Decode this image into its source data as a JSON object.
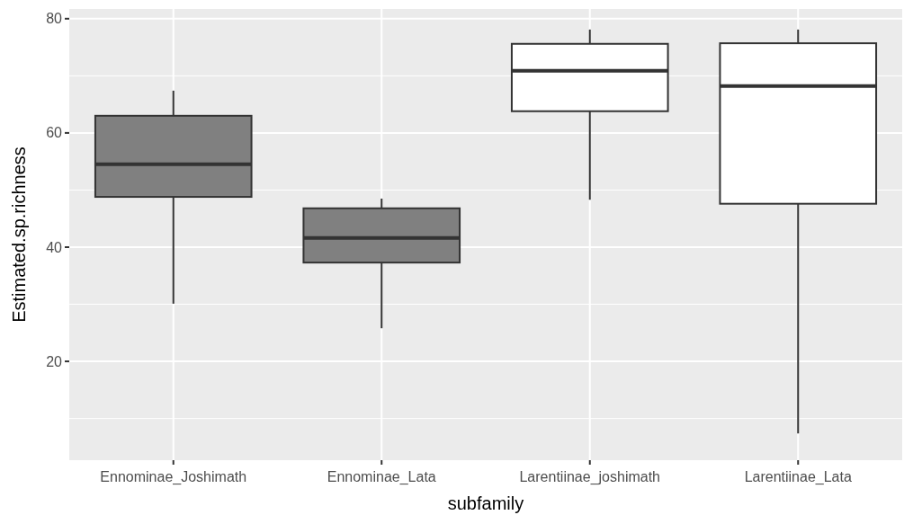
{
  "chart_data": {
    "type": "box",
    "xlabel": "subfamily",
    "ylabel": "Estimated.sp.richness",
    "categories": [
      "Ennominae_Joshimath",
      "Ennominae_Lata",
      "Larentiinae_joshimath",
      "Larentiinae_Lata"
    ],
    "boxes": [
      {
        "low": 30.1,
        "q1": 48.8,
        "median": 54.5,
        "q3": 63.0,
        "high": 67.4
      },
      {
        "low": 25.8,
        "q1": 37.3,
        "median": 41.6,
        "q3": 46.8,
        "high": 48.5
      },
      {
        "low": 48.3,
        "q1": 63.8,
        "median": 70.9,
        "q3": 75.6,
        "high": 78.1
      },
      {
        "low": 7.4,
        "q1": 47.6,
        "median": 68.2,
        "q3": 75.7,
        "high": 78.1
      }
    ],
    "colors": [
      "#808080",
      "#808080",
      "#ffffff",
      "#ffffff"
    ],
    "ylim": [
      2.7,
      81.7
    ],
    "yticks": [
      20,
      40,
      60,
      80
    ],
    "grid": true
  }
}
